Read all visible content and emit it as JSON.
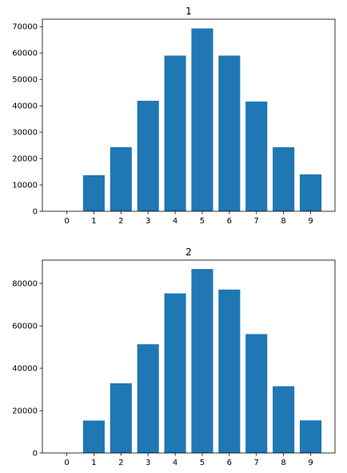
{
  "chart_data": [
    {
      "type": "bar",
      "title": "1",
      "xlabel": "",
      "ylabel": "",
      "categories": [
        "0",
        "1",
        "2",
        "3",
        "4",
        "5",
        "6",
        "7",
        "8",
        "9"
      ],
      "values": [
        0,
        13700,
        24300,
        41900,
        59000,
        69300,
        59000,
        41600,
        24300,
        14000
      ],
      "ylim": [
        0,
        72800
      ],
      "yticks": [
        0,
        10000,
        20000,
        30000,
        40000,
        50000,
        60000,
        70000
      ],
      "grid": false,
      "bar_color": "#1f77b4"
    },
    {
      "type": "bar",
      "title": "2",
      "xlabel": "",
      "ylabel": "",
      "categories": [
        "0",
        "1",
        "2",
        "3",
        "4",
        "5",
        "6",
        "7",
        "8",
        "9"
      ],
      "values": [
        0,
        15300,
        32900,
        51300,
        75300,
        86800,
        77100,
        56100,
        31500,
        15400
      ],
      "ylim": [
        0,
        91000
      ],
      "yticks": [
        0,
        20000,
        40000,
        60000,
        80000
      ],
      "grid": false,
      "bar_color": "#1f77b4"
    }
  ]
}
